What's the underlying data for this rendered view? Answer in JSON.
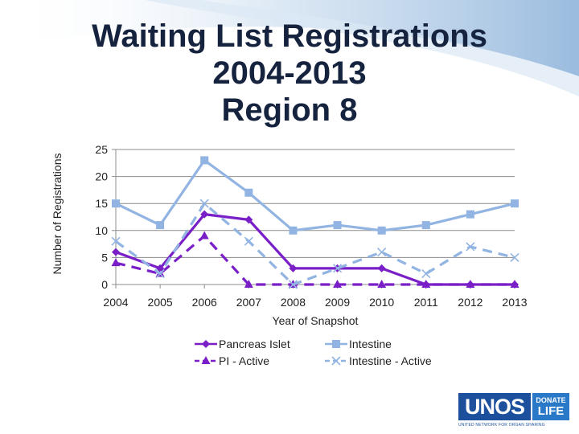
{
  "title_lines": [
    "Waiting List Registrations",
    "2004-2013",
    "Region 8"
  ],
  "logo": {
    "name": "UNOS",
    "badge_top": "DONATE",
    "badge_bottom": "LIFE",
    "tagline": "UNITED NETWORK FOR ORGAN SHARING"
  },
  "chart_data": {
    "type": "line",
    "title": "Waiting List Registrations 2004-2013 Region 8",
    "xlabel": "Year of Snapshot",
    "ylabel": "Number of Registrations",
    "categories": [
      "2004",
      "2005",
      "2006",
      "2007",
      "2008",
      "2009",
      "2010",
      "2011",
      "2012",
      "2013"
    ],
    "ylim": [
      0,
      25
    ],
    "yticks": [
      0,
      5,
      10,
      15,
      20,
      25
    ],
    "grid": true,
    "legend_position": "bottom",
    "series": [
      {
        "name": "Pancreas Islet",
        "values": [
          6,
          3,
          13,
          12,
          3,
          3,
          3,
          0,
          0,
          0
        ],
        "color": "#7a1fc8",
        "marker": "diamond",
        "dash": "solid"
      },
      {
        "name": "Intestine",
        "values": [
          15,
          11,
          23,
          17,
          10,
          11,
          10,
          11,
          13,
          15
        ],
        "color": "#92b4e2",
        "marker": "square",
        "dash": "solid"
      },
      {
        "name": "PI - Active",
        "values": [
          4,
          2,
          9,
          0,
          0,
          0,
          0,
          0,
          0,
          0
        ],
        "color": "#7a1fc8",
        "marker": "triangle",
        "dash": "dashed"
      },
      {
        "name": "Intestine - Active",
        "values": [
          8,
          2,
          15,
          8,
          0,
          3,
          6,
          2,
          7,
          5
        ],
        "color": "#92b4e2",
        "marker": "x",
        "dash": "dashed"
      }
    ]
  }
}
